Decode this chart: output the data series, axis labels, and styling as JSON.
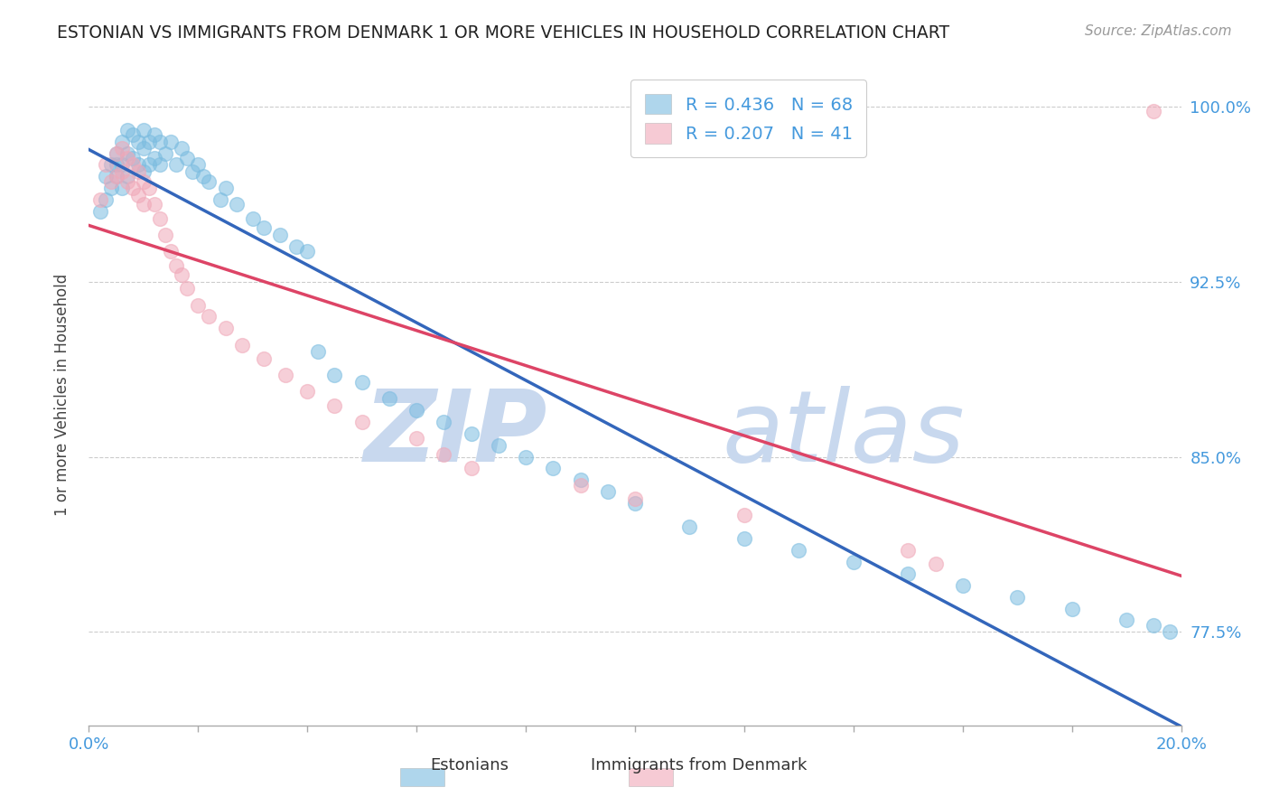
{
  "title": "ESTONIAN VS IMMIGRANTS FROM DENMARK 1 OR MORE VEHICLES IN HOUSEHOLD CORRELATION CHART",
  "source_text": "Source: ZipAtlas.com",
  "ylabel": "1 or more Vehicles in Household",
  "xlim": [
    0.0,
    0.2
  ],
  "ylim": [
    0.735,
    1.018
  ],
  "xtick_vals": [
    0.0,
    0.02,
    0.04,
    0.06,
    0.08,
    0.1,
    0.12,
    0.14,
    0.16,
    0.18,
    0.2
  ],
  "xticklabels": [
    "0.0%",
    "",
    "",
    "",
    "",
    "",
    "",
    "",
    "",
    "",
    "20.0%"
  ],
  "ytick_positions": [
    0.775,
    0.85,
    0.925,
    1.0
  ],
  "yticklabels": [
    "77.5%",
    "85.0%",
    "92.5%",
    "100.0%"
  ],
  "legend_blue_label": "R = 0.436   N = 68",
  "legend_pink_label": "R = 0.207   N = 41",
  "blue_color": "#7BBCE0",
  "pink_color": "#F0A8B8",
  "blue_line_color": "#3366BB",
  "pink_line_color": "#DD4466",
  "watermark_zip": "ZIP",
  "watermark_atlas": "atlas",
  "watermark_color": "#C8D8EE",
  "figsize": [
    14.06,
    8.92
  ],
  "dpi": 100,
  "blue_x": [
    0.002,
    0.003,
    0.003,
    0.004,
    0.004,
    0.005,
    0.005,
    0.005,
    0.006,
    0.006,
    0.006,
    0.007,
    0.007,
    0.007,
    0.008,
    0.008,
    0.009,
    0.009,
    0.01,
    0.01,
    0.01,
    0.011,
    0.011,
    0.012,
    0.012,
    0.013,
    0.013,
    0.014,
    0.015,
    0.016,
    0.017,
    0.018,
    0.019,
    0.02,
    0.021,
    0.022,
    0.024,
    0.025,
    0.027,
    0.03,
    0.032,
    0.035,
    0.038,
    0.04,
    0.042,
    0.045,
    0.05,
    0.055,
    0.06,
    0.065,
    0.07,
    0.075,
    0.08,
    0.085,
    0.09,
    0.095,
    0.1,
    0.11,
    0.12,
    0.13,
    0.14,
    0.15,
    0.16,
    0.17,
    0.18,
    0.19,
    0.195,
    0.198
  ],
  "blue_y": [
    0.955,
    0.97,
    0.96,
    0.975,
    0.965,
    0.98,
    0.975,
    0.97,
    0.985,
    0.975,
    0.965,
    0.99,
    0.98,
    0.97,
    0.988,
    0.978,
    0.985,
    0.975,
    0.99,
    0.982,
    0.972,
    0.985,
    0.975,
    0.988,
    0.978,
    0.985,
    0.975,
    0.98,
    0.985,
    0.975,
    0.982,
    0.978,
    0.972,
    0.975,
    0.97,
    0.968,
    0.96,
    0.965,
    0.958,
    0.952,
    0.948,
    0.945,
    0.94,
    0.938,
    0.895,
    0.885,
    0.882,
    0.875,
    0.87,
    0.865,
    0.86,
    0.855,
    0.85,
    0.845,
    0.84,
    0.835,
    0.83,
    0.82,
    0.815,
    0.81,
    0.805,
    0.8,
    0.795,
    0.79,
    0.785,
    0.78,
    0.778,
    0.775
  ],
  "pink_x": [
    0.002,
    0.003,
    0.004,
    0.005,
    0.005,
    0.006,
    0.006,
    0.007,
    0.007,
    0.008,
    0.008,
    0.009,
    0.009,
    0.01,
    0.01,
    0.011,
    0.012,
    0.013,
    0.014,
    0.015,
    0.016,
    0.017,
    0.018,
    0.02,
    0.022,
    0.025,
    0.028,
    0.032,
    0.036,
    0.04,
    0.045,
    0.05,
    0.06,
    0.065,
    0.07,
    0.09,
    0.1,
    0.12,
    0.15,
    0.155,
    0.195
  ],
  "pink_y": [
    0.96,
    0.975,
    0.968,
    0.98,
    0.97,
    0.982,
    0.972,
    0.978,
    0.968,
    0.975,
    0.965,
    0.972,
    0.962,
    0.968,
    0.958,
    0.965,
    0.958,
    0.952,
    0.945,
    0.938,
    0.932,
    0.928,
    0.922,
    0.915,
    0.91,
    0.905,
    0.898,
    0.892,
    0.885,
    0.878,
    0.872,
    0.865,
    0.858,
    0.851,
    0.845,
    0.838,
    0.832,
    0.825,
    0.81,
    0.804,
    0.998
  ]
}
